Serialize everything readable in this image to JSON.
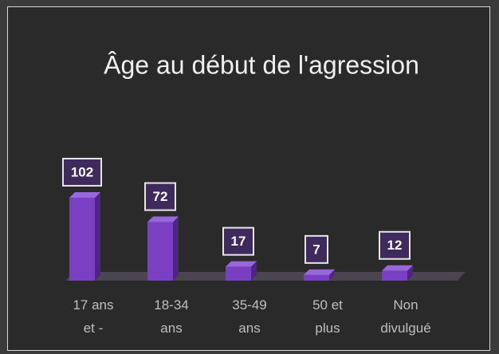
{
  "chart_data": {
    "type": "bar3d",
    "title": "Âge au début de l'agression",
    "categories": [
      "17 ans et -",
      "18-34 ans",
      "35-49 ans",
      "50 et plus",
      "Non divulgué"
    ],
    "values": [
      102,
      72,
      17,
      7,
      12
    ],
    "color": "#7b3fc4"
  }
}
